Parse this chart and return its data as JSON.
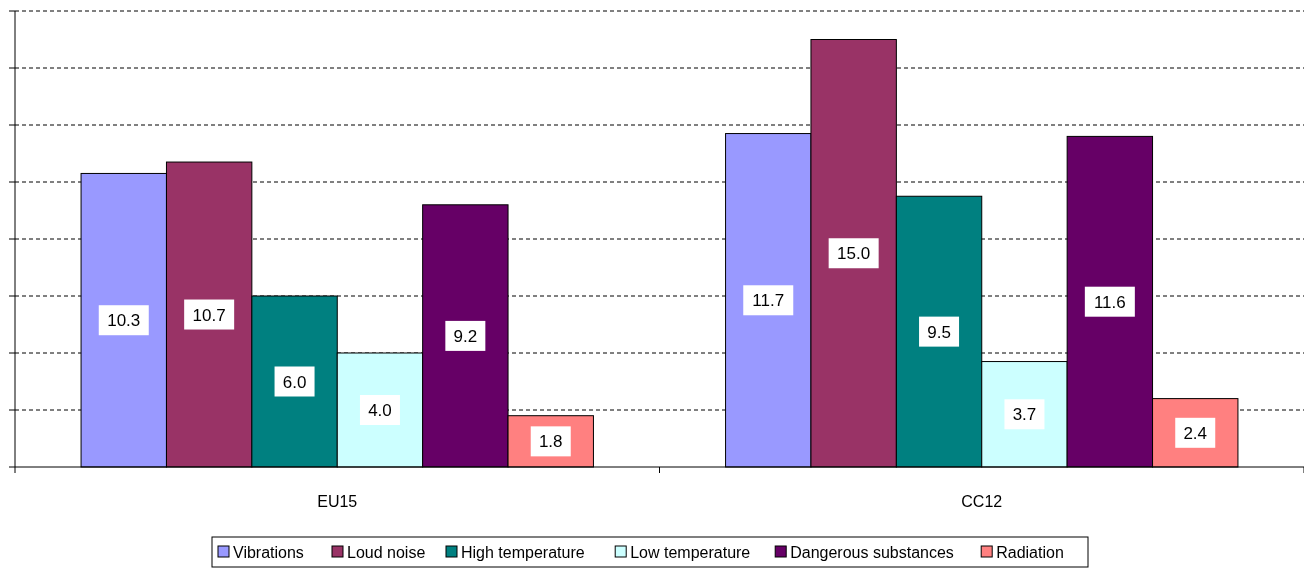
{
  "chart_data": {
    "type": "bar",
    "categories": [
      "EU15",
      "CC12"
    ],
    "series": [
      {
        "name": "Vibrations",
        "color": "#9999ff",
        "values": [
          10.3,
          11.7
        ],
        "value_labels": [
          "10.3",
          "11.7"
        ]
      },
      {
        "name": "Loud noise",
        "color": "#993366",
        "values": [
          10.7,
          15.0
        ],
        "value_labels": [
          "10.7",
          "15.0"
        ]
      },
      {
        "name": "High temperature",
        "color": "#008080",
        "values": [
          6.0,
          9.5
        ],
        "value_labels": [
          "6.0",
          "9.5"
        ]
      },
      {
        "name": "Low temperature",
        "color": "#ccffff",
        "values": [
          4.0,
          3.7
        ],
        "value_labels": [
          "4.0",
          "3.7"
        ]
      },
      {
        "name": "Dangerous substances",
        "color": "#660066",
        "values": [
          9.2,
          11.6
        ],
        "value_labels": [
          "9.2",
          "11.6"
        ]
      },
      {
        "name": "Radiation",
        "color": "#ff8080",
        "values": [
          1.8,
          2.4
        ],
        "value_labels": [
          "1.8",
          "2.4"
        ]
      }
    ],
    "ylim": [
      0,
      16
    ],
    "yticks": [
      {
        "value": 0,
        "label": null
      },
      {
        "value": 2,
        "label": null
      },
      {
        "value": 4,
        "label": null
      },
      {
        "value": 6,
        "label": null
      },
      {
        "value": 8,
        "label": null
      },
      {
        "value": 10,
        "label": null
      },
      {
        "value": 12,
        "label": null
      },
      {
        "value": 14,
        "label": null
      },
      {
        "value": 16,
        "label": null
      }
    ],
    "tick_labels": "x",
    "grid": "y",
    "legend": "bottom"
  }
}
